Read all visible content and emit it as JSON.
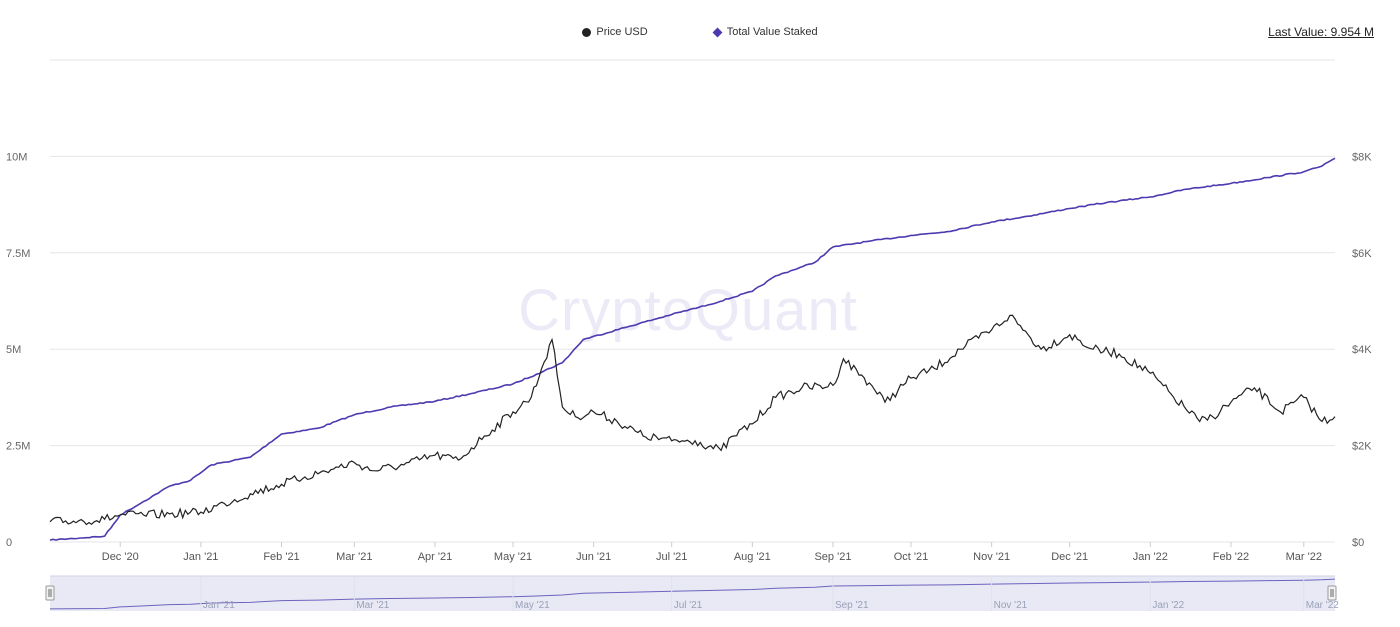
{
  "legend": {
    "price_label": "Price USD",
    "staked_label": "Total Value Staked"
  },
  "last_value": "Last Value: 9.954 M",
  "watermark": "CryptoQuant",
  "colors": {
    "price": "#222222",
    "staked": "#4b3bb0",
    "grid": "#e6e6e6",
    "navigator_fill": "#e8e9f4"
  },
  "chart_data": {
    "type": "line",
    "x_ticks": [
      "Dec '20",
      "Jan '21",
      "Feb '21",
      "Mar '21",
      "Apr '21",
      "May '21",
      "Jun '21",
      "Jul '21",
      "Aug '21",
      "Sep '21",
      "Oct '21",
      "Nov '21",
      "Dec '21",
      "Jan '22",
      "Feb '22",
      "Mar '22"
    ],
    "y_left_ticks": [
      "0",
      "2.5M",
      "5M",
      "7.5M",
      "10M"
    ],
    "y_right_ticks": [
      "$0",
      "$2K",
      "$4K",
      "$6K",
      "$8K"
    ],
    "y_left_range": [
      0,
      12500000
    ],
    "y_right_range": [
      0,
      10000
    ],
    "x_range": [
      "2020-11-04",
      "2022-03-13"
    ],
    "grid": true,
    "legend_position": "top-center",
    "series": [
      {
        "name": "Total Value Staked",
        "axis": "left",
        "x": [
          "2020-11-04",
          "2020-11-25",
          "2020-12-01",
          "2020-12-10",
          "2020-12-20",
          "2020-12-28",
          "2021-01-05",
          "2021-01-20",
          "2021-02-01",
          "2021-02-15",
          "2021-03-01",
          "2021-03-15",
          "2021-04-01",
          "2021-04-15",
          "2021-05-01",
          "2021-05-10",
          "2021-05-20",
          "2021-05-28",
          "2021-06-15",
          "2021-07-01",
          "2021-07-15",
          "2021-08-01",
          "2021-08-10",
          "2021-08-25",
          "2021-09-01",
          "2021-09-15",
          "2021-10-01",
          "2021-10-15",
          "2021-11-01",
          "2021-11-15",
          "2021-12-01",
          "2021-12-15",
          "2022-01-01",
          "2022-01-15",
          "2022-02-01",
          "2022-02-15",
          "2022-03-01",
          "2022-03-08",
          "2022-03-13"
        ],
        "values": [
          0.05,
          0.15,
          0.7,
          1.05,
          1.45,
          1.6,
          2.0,
          2.2,
          2.8,
          2.95,
          3.3,
          3.5,
          3.65,
          3.85,
          4.1,
          4.35,
          4.65,
          5.25,
          5.6,
          5.9,
          6.15,
          6.5,
          6.9,
          7.25,
          7.65,
          7.8,
          7.95,
          8.05,
          8.3,
          8.45,
          8.65,
          8.8,
          8.95,
          9.15,
          9.3,
          9.45,
          9.6,
          9.75,
          9.954
        ]
      },
      {
        "name": "Price USD",
        "axis": "right",
        "x": [
          "2020-11-04",
          "2020-11-15",
          "2020-11-25",
          "2020-12-01",
          "2020-12-10",
          "2020-12-20",
          "2021-01-01",
          "2021-01-10",
          "2021-01-20",
          "2021-02-01",
          "2021-02-10",
          "2021-02-20",
          "2021-03-01",
          "2021-03-08",
          "2021-03-20",
          "2021-04-01",
          "2021-04-10",
          "2021-04-20",
          "2021-05-01",
          "2021-05-08",
          "2021-05-12",
          "2021-05-16",
          "2021-05-20",
          "2021-05-25",
          "2021-06-01",
          "2021-06-10",
          "2021-06-20",
          "2021-07-01",
          "2021-07-10",
          "2021-07-20",
          "2021-07-25",
          "2021-08-01",
          "2021-08-10",
          "2021-08-20",
          "2021-09-01",
          "2021-09-05",
          "2021-09-15",
          "2021-09-21",
          "2021-10-01",
          "2021-10-10",
          "2021-10-20",
          "2021-11-01",
          "2021-11-08",
          "2021-11-15",
          "2021-11-20",
          "2021-12-01",
          "2021-12-10",
          "2021-12-20",
          "2022-01-01",
          "2022-01-10",
          "2022-01-20",
          "2022-01-25",
          "2022-02-01",
          "2022-02-10",
          "2022-02-20",
          "2022-03-01",
          "2022-03-08",
          "2022-03-13"
        ],
        "values": [
          420,
          440,
          470,
          560,
          560,
          580,
          620,
          800,
          1000,
          1200,
          1350,
          1500,
          1650,
          1480,
          1600,
          1800,
          1700,
          2200,
          2700,
          3000,
          3600,
          4200,
          2800,
          2600,
          2700,
          2500,
          2200,
          2100,
          2100,
          1900,
          2200,
          2450,
          3000,
          3200,
          3250,
          3800,
          3300,
          2900,
          3400,
          3600,
          4000,
          4400,
          4700,
          4300,
          4000,
          4300,
          4000,
          3900,
          3500,
          3000,
          2500,
          2600,
          2900,
          3200,
          2700,
          3000,
          2500,
          2600
        ]
      }
    ]
  }
}
